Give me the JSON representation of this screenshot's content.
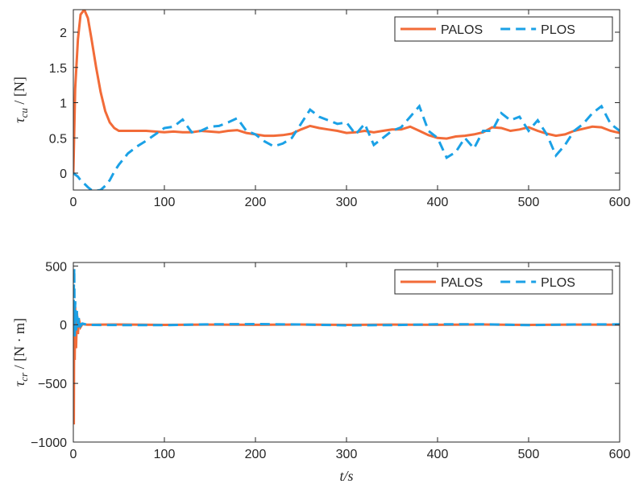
{
  "chart_data": [
    {
      "type": "line",
      "y_label": [
        "τ",
        "cu",
        " / [N]"
      ],
      "x": [
        0,
        2,
        5,
        8,
        12,
        16,
        20,
        25,
        30,
        35,
        40,
        45,
        50,
        55,
        60,
        70,
        80,
        90,
        100,
        110,
        120,
        130,
        140,
        150,
        160,
        170,
        180,
        190,
        200,
        210,
        220,
        230,
        240,
        250,
        260,
        270,
        280,
        290,
        300,
        310,
        320,
        330,
        340,
        350,
        360,
        370,
        380,
        390,
        400,
        410,
        420,
        430,
        440,
        450,
        460,
        470,
        480,
        490,
        500,
        510,
        520,
        530,
        540,
        550,
        560,
        570,
        580,
        590,
        600
      ],
      "series": [
        {
          "name": "PALOS",
          "color": "#f26b38",
          "dashed": false,
          "values": [
            0,
            1.2,
            1.9,
            2.25,
            2.32,
            2.2,
            1.9,
            1.5,
            1.15,
            0.88,
            0.72,
            0.64,
            0.6,
            0.6,
            0.6,
            0.6,
            0.6,
            0.59,
            0.58,
            0.59,
            0.58,
            0.58,
            0.6,
            0.59,
            0.58,
            0.6,
            0.61,
            0.57,
            0.55,
            0.53,
            0.53,
            0.54,
            0.56,
            0.62,
            0.67,
            0.64,
            0.62,
            0.6,
            0.57,
            0.58,
            0.6,
            0.58,
            0.6,
            0.62,
            0.62,
            0.66,
            0.6,
            0.54,
            0.5,
            0.49,
            0.52,
            0.53,
            0.55,
            0.58,
            0.65,
            0.64,
            0.6,
            0.62,
            0.65,
            0.6,
            0.56,
            0.53,
            0.55,
            0.6,
            0.63,
            0.66,
            0.65,
            0.6,
            0.57
          ]
        },
        {
          "name": "PLOS",
          "color": "#1ba1e6",
          "dashed": true,
          "values": [
            0,
            -0.02,
            -0.05,
            -0.1,
            -0.15,
            -0.2,
            -0.24,
            -0.25,
            -0.24,
            -0.18,
            -0.1,
            0.02,
            0.12,
            0.2,
            0.28,
            0.38,
            0.46,
            0.55,
            0.64,
            0.66,
            0.76,
            0.58,
            0.6,
            0.66,
            0.67,
            0.72,
            0.78,
            0.6,
            0.55,
            0.45,
            0.38,
            0.42,
            0.5,
            0.7,
            0.9,
            0.8,
            0.75,
            0.7,
            0.72,
            0.55,
            0.7,
            0.4,
            0.5,
            0.6,
            0.65,
            0.8,
            0.95,
            0.6,
            0.5,
            0.22,
            0.3,
            0.5,
            0.35,
            0.6,
            0.6,
            0.85,
            0.75,
            0.8,
            0.6,
            0.75,
            0.55,
            0.25,
            0.4,
            0.6,
            0.7,
            0.85,
            0.95,
            0.7,
            0.6
          ]
        }
      ],
      "xlim": [
        0,
        600
      ],
      "xticks": [
        0,
        100,
        200,
        300,
        400,
        500,
        600
      ],
      "ylim": [
        -0.24,
        2.32
      ],
      "yticks": [
        0,
        0.5,
        1,
        1.5,
        2
      ],
      "legend": "upper right"
    },
    {
      "type": "line",
      "y_label": [
        "τ",
        "cr",
        " / [N · m]"
      ],
      "x_label": "t/s",
      "x": [
        0,
        0.5,
        1,
        1.5,
        2,
        3,
        4,
        5,
        6,
        8,
        10,
        15,
        20,
        50,
        100,
        150,
        200,
        250,
        300,
        350,
        400,
        450,
        500,
        550,
        600
      ],
      "series": [
        {
          "name": "PALOS",
          "color": "#f26b38",
          "dashed": false,
          "values": [
            0,
            -850,
            200,
            -300,
            150,
            -200,
            100,
            -80,
            50,
            -20,
            5,
            0,
            0,
            2,
            -2,
            1,
            -1,
            2,
            -2,
            1,
            -1,
            2,
            -2,
            1,
            0
          ]
        },
        {
          "name": "PLOS",
          "color": "#1ba1e6",
          "dashed": true,
          "values": [
            0,
            300,
            480,
            -100,
            200,
            -50,
            120,
            -40,
            60,
            -10,
            10,
            0,
            -2,
            -3,
            -4,
            3,
            5,
            2,
            -5,
            -3,
            3,
            4,
            -4,
            2,
            3
          ]
        }
      ],
      "xlim": [
        0,
        600
      ],
      "xticks": [
        0,
        100,
        200,
        300,
        400,
        500,
        600
      ],
      "ylim": [
        -1000,
        530
      ],
      "yticks": [
        {
          "value": -1000,
          "label": "−1000"
        },
        {
          "value": -500,
          "label": "−500"
        },
        0,
        500
      ],
      "legend": "upper right"
    }
  ]
}
